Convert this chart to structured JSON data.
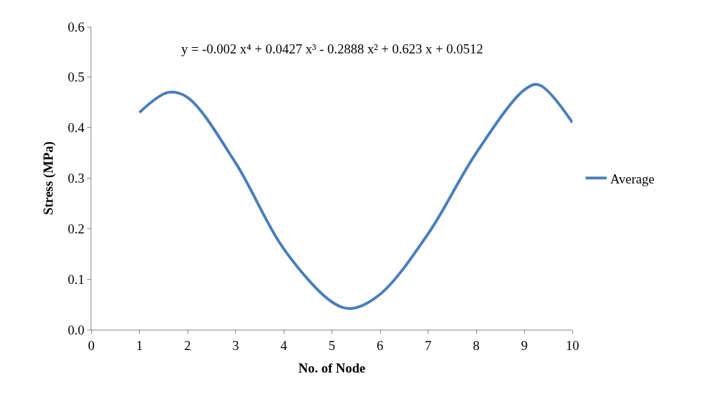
{
  "chart_data": {
    "type": "line",
    "xlabel": "No. of Node",
    "ylabel": "Stress (MPa)",
    "x": [
      1,
      1.6,
      2,
      3,
      4,
      5,
      5.4,
      6,
      7,
      8,
      9,
      9.3,
      10
    ],
    "series": [
      {
        "name": "Average",
        "color": "#4a7ebb",
        "values": [
          0.43,
          0.47,
          0.46,
          0.33,
          0.16,
          0.055,
          0.042,
          0.07,
          0.19,
          0.35,
          0.475,
          0.485,
          0.41
        ]
      }
    ],
    "annotations": [
      "y = -0.002 x⁴ + 0.0427 x³ - 0.2888 x² + 0.623 x + 0.0512"
    ],
    "xlim": [
      0,
      10
    ],
    "xticks": [
      0,
      1,
      2,
      3,
      4,
      5,
      6,
      7,
      8,
      9,
      10
    ],
    "ylim": [
      0,
      0.6
    ],
    "yticks": [
      {
        "value": 0,
        "label": "0.0"
      },
      0.1,
      0.2,
      0.3,
      0.4,
      0.5,
      0.6
    ],
    "legend": "right",
    "marker": "none",
    "line_style": "solid"
  }
}
